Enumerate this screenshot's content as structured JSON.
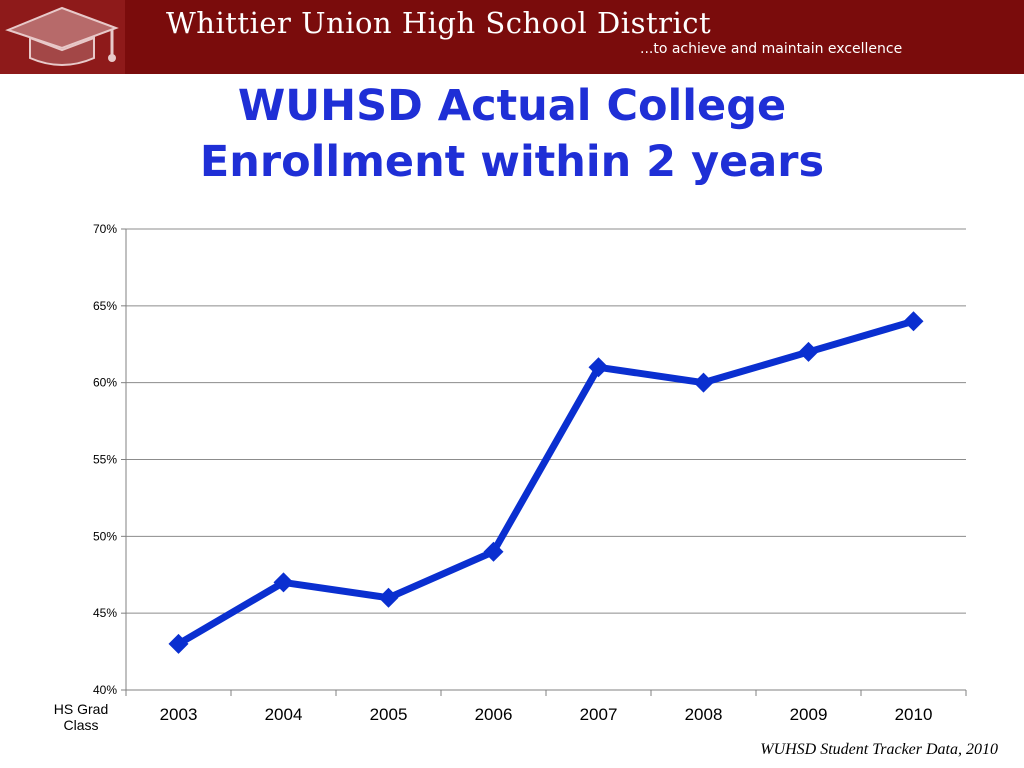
{
  "banner": {
    "title": "Whittier Union High School District",
    "tagline": "...to achieve and maintain excellence",
    "logo": "graduation-cap-logo",
    "background_color": "#7a0c0c"
  },
  "slide": {
    "title_line1": "WUHSD Actual College",
    "title_line2": "Enrollment within 2 years",
    "title_color": "#1f2fd6",
    "source": "WUHSD Student Tracker Data, 2010"
  },
  "chart_data": {
    "type": "line",
    "categories": [
      "2003",
      "2004",
      "2005",
      "2006",
      "2007",
      "2008",
      "2009",
      "2010"
    ],
    "values": [
      43,
      47,
      46,
      49,
      61,
      60,
      62,
      64
    ],
    "unit": "%",
    "xlabel": "HS Grad Class",
    "ylabel": "",
    "ylim": [
      40,
      70
    ],
    "yticks": [
      "40%",
      "45%",
      "50%",
      "55%",
      "60%",
      "65%",
      "70%"
    ],
    "grid": true,
    "legend": "none",
    "line_color": "#0a2fd0",
    "marker": "diamond"
  }
}
